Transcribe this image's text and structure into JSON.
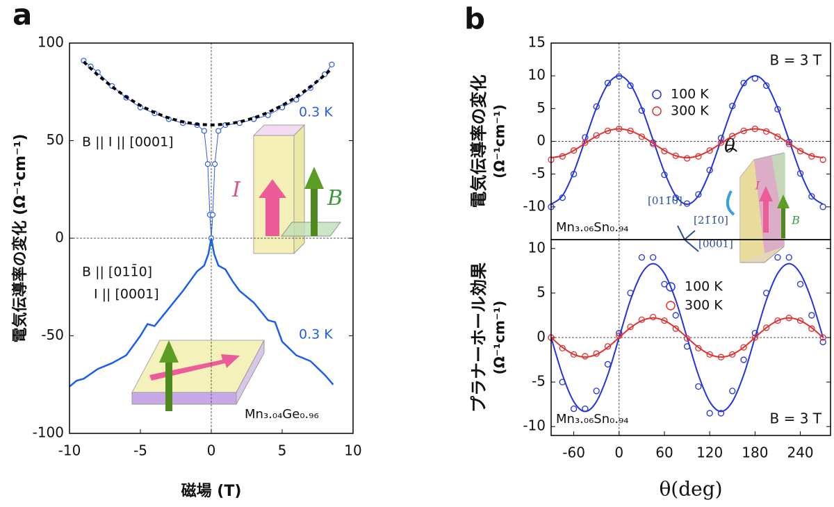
{
  "panel_labels": [
    "a",
    "b"
  ],
  "chart_data": [
    {
      "type": "line",
      "xlabel": "磁場 (T)",
      "ylabel": "電気伝導率の変化 (Ω⁻¹cm⁻¹)",
      "xlim": [
        -10,
        10
      ],
      "ylim": [
        -100,
        100
      ],
      "xticks": [
        -10,
        -5,
        0,
        5,
        10
      ],
      "yticks": [
        -100,
        -50,
        0,
        50,
        100
      ],
      "zero_lines": true,
      "series": [
        {
          "name": "0.3 K",
          "color": "#2a5de8",
          "marker": "circle",
          "x": [
            -9,
            -8.5,
            -8,
            -7,
            -6,
            -5,
            -4,
            -3,
            -2,
            -1,
            -0.5,
            -0.25,
            -0.1,
            0,
            0.1,
            0.25,
            0.5,
            1,
            2,
            3,
            4,
            5,
            6,
            7,
            8,
            8.5
          ],
          "values": [
            91,
            88,
            85,
            78,
            72,
            67,
            64,
            61,
            59,
            58,
            55,
            38,
            12,
            0,
            12,
            38,
            55,
            58,
            59,
            61,
            63,
            67,
            71,
            77,
            84,
            89
          ]
        },
        {
          "color": "#000000",
          "dash": true,
          "x": [
            -9,
            -8,
            -7,
            -6,
            -5,
            -4,
            -3,
            -2,
            -1,
            0,
            1,
            2,
            3,
            4,
            5,
            6,
            7,
            8,
            8.5
          ],
          "values": [
            90.4,
            83.6,
            77.6,
            72.4,
            68,
            64.4,
            61.6,
            59.6,
            58.4,
            58,
            58.4,
            59.6,
            61.6,
            64.4,
            68,
            72.4,
            77.6,
            83.6,
            86.9
          ]
        },
        {
          "name": "0.3 K",
          "color": "#1a5ef0",
          "x": [
            -10,
            -9.5,
            -9,
            -8,
            -7,
            -6,
            -5,
            -4.5,
            -4,
            -3,
            -2,
            -1.5,
            -1,
            -0.5,
            -0.2,
            0,
            0.2,
            0.5,
            1,
            1.5,
            2,
            3,
            4,
            4.5,
            5,
            6,
            7,
            8,
            8.6
          ],
          "values": [
            -76,
            -73,
            -72,
            -67,
            -64,
            -60,
            -50,
            -44,
            -45,
            -36,
            -27,
            -22,
            -17,
            -14,
            -8,
            0,
            -8,
            -14,
            -16,
            -22,
            -27,
            -33,
            -42,
            -43,
            -53,
            -60,
            -63,
            -70,
            -75
          ]
        }
      ],
      "annotations": [
        "B || I || [0001]",
        "B || [011̄0]",
        "I || [0001]",
        "Mn₃.₀₄Ge₀.₉₆",
        "I",
        "B"
      ]
    },
    {
      "type": "line",
      "ylabel": [
        "電気伝導率の変化",
        "(Ω⁻¹cm⁻¹)"
      ],
      "xlim": [
        -90,
        280
      ],
      "ylim": [
        -15,
        15
      ],
      "yticks": [
        -10,
        -5,
        0,
        5,
        10,
        15
      ],
      "zero_lines": true,
      "legend": true,
      "x": [
        -90,
        -75,
        -60,
        -45,
        -30,
        -15,
        0,
        15,
        30,
        45,
        60,
        75,
        90,
        105,
        120,
        135,
        150,
        165,
        180,
        195,
        210,
        225,
        240,
        255,
        270
      ],
      "series": [
        {
          "name": "100 K",
          "color": "#2233dd",
          "values": [
            -10,
            -8.6,
            -5,
            0.6,
            5.3,
            8.9,
            9.9,
            8.5,
            4.7,
            -0.2,
            -5.1,
            -8.6,
            -9.5,
            -8.1,
            -4.4,
            0.5,
            5.4,
            8.9,
            9.6,
            8.5,
            4.9,
            -0.1,
            -4.9,
            -8.4,
            -10
          ],
          "fit": [
            -9.6,
            -8.3,
            -4.7,
            0.2,
            5.1,
            8.7,
            10,
            8.7,
            5.1,
            0.2,
            -4.7,
            -8.3,
            -9.6,
            -8.3,
            -4.7,
            0.2,
            5.1,
            8.7,
            10,
            8.7,
            5.1,
            0.2,
            -4.7,
            -8.3,
            -9.6
          ]
        },
        {
          "name": "300 K",
          "color": "#e03030",
          "values": [
            -2.8,
            -2.3,
            -1.4,
            -0.2,
            0.9,
            1.6,
            1.9,
            1.6,
            0.7,
            -0.4,
            -1.5,
            -2.2,
            -2.6,
            -2.3,
            -1.4,
            -0.2,
            0.8,
            1.6,
            1.9,
            1.5,
            0.7,
            -0.4,
            -1.5,
            -2.3,
            -2.8
          ],
          "fit": [
            -2.5,
            -2.2,
            -1.4,
            -0.3,
            0.8,
            1.6,
            1.9,
            1.6,
            0.8,
            -0.3,
            -1.4,
            -2.2,
            -2.5,
            -2.2,
            -1.4,
            -0.3,
            0.8,
            1.6,
            1.9,
            1.6,
            0.8,
            -0.3,
            -1.4,
            -2.2,
            -2.5
          ]
        }
      ],
      "annotations": [
        "B = 3 T",
        "Mn₃.₀₆Sn₀.₉₄",
        "θ",
        "I",
        "B",
        "[011̄0]",
        "[21̄1̄0]",
        "[0001]"
      ]
    },
    {
      "type": "line",
      "xlabel": "θ(deg)",
      "ylabel": [
        "プラナーホール効果",
        "(Ω⁻¹cm⁻¹)"
      ],
      "xlim": [
        -90,
        280
      ],
      "ylim": [
        -11,
        11
      ],
      "xticks": [
        -60,
        0,
        60,
        120,
        180,
        240
      ],
      "yticks": [
        -10,
        -5,
        0,
        5,
        10
      ],
      "zero_lines": true,
      "legend": true,
      "x": [
        -90,
        -75,
        -60,
        -45,
        -30,
        -15,
        0,
        15,
        30,
        45,
        60,
        75,
        90,
        105,
        120,
        135,
        150,
        165,
        180,
        195,
        210,
        225,
        240,
        255,
        270
      ],
      "series": [
        {
          "name": "100 K",
          "color": "#2233dd",
          "values": [
            0,
            -5,
            -8,
            -8,
            -6,
            -3,
            0.5,
            5,
            9,
            9,
            6,
            2.5,
            -1,
            -5.5,
            -8.5,
            -8.5,
            -6,
            -2.5,
            0.5,
            5,
            9,
            9,
            6,
            2.5,
            -0.5
          ],
          "fit": [
            0,
            -4.2,
            -7.2,
            -8.3,
            -7.2,
            -4.2,
            0,
            4.2,
            7.2,
            8.3,
            7.2,
            4.2,
            0,
            -4.2,
            -7.2,
            -8.3,
            -7.2,
            -4.2,
            0,
            4.2,
            7.2,
            8.3,
            7.2,
            4.2,
            0
          ]
        },
        {
          "name": "300 K",
          "color": "#e03030",
          "values": [
            0,
            -1.2,
            -1.9,
            -2.1,
            -1.8,
            -1,
            0.2,
            1.2,
            2,
            2.3,
            1.9,
            1,
            -0.1,
            -1.2,
            -1.9,
            -2.2,
            -1.9,
            -1.1,
            0,
            1.1,
            1.9,
            2.2,
            1.9,
            1,
            0
          ],
          "fit": [
            0,
            -1.1,
            -1.9,
            -2.2,
            -1.9,
            -1.1,
            0,
            1.1,
            1.9,
            2.2,
            1.9,
            1.1,
            0,
            -1.1,
            -1.9,
            -2.2,
            -1.9,
            -1.1,
            0,
            1.1,
            1.9,
            2.2,
            1.9,
            1.1,
            0
          ]
        }
      ],
      "annotations": [
        "Mn₃.₀₆Sn₀.₉₄",
        "B = 3 T"
      ]
    }
  ]
}
